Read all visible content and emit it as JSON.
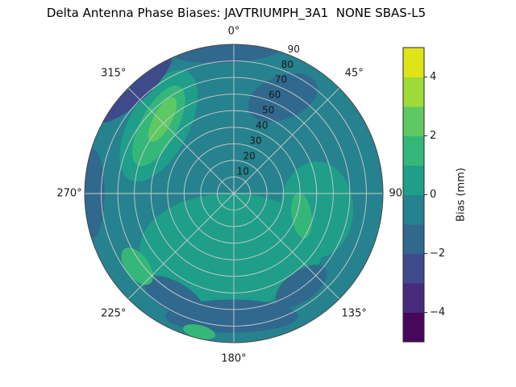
{
  "chart_data": {
    "type": "polar_contour",
    "title": "Delta Antenna Phase Biases: JAVTRIUMPH_3A1  NONE SBAS-L5",
    "azimuth_ticks_deg": [
      0,
      45,
      90,
      135,
      180,
      225,
      270,
      315
    ],
    "azimuth_tick_labels": [
      "0°",
      "45°",
      "90°",
      "135°",
      "180°",
      "225°",
      "270°",
      "315°"
    ],
    "radial_tick_labels": [
      "10",
      "20",
      "30",
      "40",
      "50",
      "60",
      "70",
      "80",
      "90"
    ],
    "radial_max": 90,
    "radial_label_azimuth_deg": 22.5,
    "grid_color": "#cccccc",
    "outline_color": "#4a4a4a",
    "levels": [
      -5,
      -4,
      -3,
      -2,
      -1,
      0,
      1,
      2,
      3,
      4,
      5
    ],
    "level_colors": [
      "#46085c",
      "#472a7a",
      "#3e4a89",
      "#31688e",
      "#26828e",
      "#1f9e89",
      "#35b779",
      "#5ec962",
      "#9fda3a",
      "#dfe318"
    ],
    "base_value": -0.5,
    "regions": [
      {
        "name": "lower-broad-lighter",
        "az": 183,
        "r": 34,
        "rx": 55,
        "ry": 34,
        "rot": 0,
        "value": 0.5
      },
      {
        "name": "right-halo",
        "az": 101,
        "r": 51,
        "rx": 22,
        "ry": 29,
        "rot": 0,
        "value": 0.5
      },
      {
        "name": "upper-left-halo",
        "az": 312,
        "r": 61,
        "rx": 18,
        "ry": 37,
        "rot": 28,
        "value": 0.5
      },
      {
        "name": "top-dark-blob",
        "az": 27,
        "r": 65,
        "rx": 22,
        "ry": 13,
        "rot": -22,
        "value": -1.5
      },
      {
        "name": "upper-left-rim-dark",
        "az": 317,
        "r": 88,
        "rx": 30,
        "ry": 9,
        "rot": -43,
        "value": -2.5
      },
      {
        "name": "top-rim-dark",
        "az": 357,
        "r": 86,
        "rx": 33,
        "ry": 7,
        "rot": -3,
        "value": -1.5
      },
      {
        "name": "left-rim-dark",
        "az": 270,
        "r": 85,
        "rx": 7,
        "ry": 27,
        "rot": 0,
        "value": -1.5
      },
      {
        "name": "bottom-dark-arc",
        "az": 181,
        "r": 74,
        "rx": 40,
        "ry": 10,
        "rot": 0,
        "value": -1.5
      },
      {
        "name": "bottom-left-dark",
        "az": 210,
        "r": 72,
        "rx": 20,
        "ry": 9,
        "rot": 30,
        "value": -1.5
      },
      {
        "name": "bottom-right-dark",
        "az": 144,
        "r": 69,
        "rx": 18,
        "ry": 9,
        "rot": -36,
        "value": -1.5
      },
      {
        "name": "upper-left-green",
        "az": 312,
        "r": 61,
        "rx": 11,
        "ry": 27,
        "rot": 28,
        "value": 1.5
      },
      {
        "name": "upper-left-core",
        "az": 316,
        "r": 62,
        "rx": 5.5,
        "ry": 15,
        "rot": 28,
        "value": 2.5
      },
      {
        "name": "right-green",
        "az": 108,
        "r": 43,
        "rx": 6,
        "ry": 14,
        "rot": -8,
        "value": 1.5
      },
      {
        "name": "lower-left-green-rim",
        "az": 233,
        "r": 73,
        "rx": 13,
        "ry": 7,
        "rot": 53,
        "value": 1.5
      },
      {
        "name": "bottom-green-rim",
        "az": 194,
        "r": 86,
        "rx": 10,
        "ry": 4,
        "rot": 14,
        "value": 1.5
      }
    ],
    "colorbar": {
      "label": "Bias (mm)",
      "vmin": -5,
      "vmax": 5,
      "ticks": [
        "4",
        "2",
        "0",
        "−2",
        "−4"
      ],
      "tick_values": [
        4,
        2,
        0,
        -2,
        -4
      ]
    }
  }
}
